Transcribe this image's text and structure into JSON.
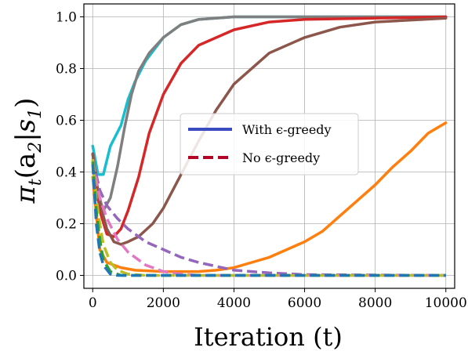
{
  "chart_data": {
    "type": "line",
    "title": "",
    "xlabel": "Iteration (t)",
    "ylabel_base": "π",
    "ylabel_sub": "t",
    "ylabel_args": "(a",
    "ylabel_args_sub": "2",
    "ylabel_given": "|s",
    "ylabel_given_sub": "1",
    "ylabel_close": ")",
    "xlim": [
      -250,
      10250
    ],
    "ylim": [
      -0.05,
      1.05
    ],
    "xticks": [
      0,
      2000,
      4000,
      6000,
      8000,
      10000
    ],
    "xtick_labels": [
      "0",
      "2000",
      "4000",
      "6000",
      "8000",
      "10000"
    ],
    "yticks": [
      0.0,
      0.2,
      0.4,
      0.6,
      0.8,
      1.0
    ],
    "ytick_labels": [
      "0.0",
      "0.2",
      "0.4",
      "0.6",
      "0.8",
      "1.0"
    ],
    "grid": true,
    "legend": {
      "placement": "center",
      "entries": [
        {
          "label": "With ϵ-greedy",
          "color": "#3b4cc0",
          "dash": "solid"
        },
        {
          "label": "No ϵ-greedy",
          "color": "#b40426",
          "dash": "dashed"
        }
      ]
    },
    "series": [
      {
        "color": "#17becf",
        "dash": "solid",
        "points": [
          [
            0,
            0.5
          ],
          [
            150,
            0.39
          ],
          [
            300,
            0.39
          ],
          [
            500,
            0.5
          ],
          [
            800,
            0.58
          ],
          [
            1000,
            0.68
          ],
          [
            1200,
            0.75
          ],
          [
            1500,
            0.83
          ],
          [
            2000,
            0.92
          ],
          [
            2500,
            0.97
          ],
          [
            3000,
            0.99
          ],
          [
            4000,
            1.0
          ],
          [
            6000,
            1.0
          ],
          [
            10000,
            1.0
          ]
        ]
      },
      {
        "color": "#7f7f7f",
        "dash": "solid",
        "points": [
          [
            0,
            0.47
          ],
          [
            150,
            0.32
          ],
          [
            300,
            0.25
          ],
          [
            500,
            0.3
          ],
          [
            700,
            0.42
          ],
          [
            900,
            0.57
          ],
          [
            1100,
            0.7
          ],
          [
            1300,
            0.79
          ],
          [
            1600,
            0.86
          ],
          [
            2000,
            0.92
          ],
          [
            2500,
            0.97
          ],
          [
            3000,
            0.99
          ],
          [
            4000,
            1.0
          ],
          [
            10000,
            1.0
          ]
        ]
      },
      {
        "color": "#d62728",
        "dash": "solid",
        "points": [
          [
            0,
            0.47
          ],
          [
            200,
            0.25
          ],
          [
            400,
            0.16
          ],
          [
            600,
            0.15
          ],
          [
            800,
            0.18
          ],
          [
            1000,
            0.25
          ],
          [
            1300,
            0.38
          ],
          [
            1600,
            0.55
          ],
          [
            2000,
            0.7
          ],
          [
            2500,
            0.82
          ],
          [
            3000,
            0.89
          ],
          [
            4000,
            0.95
          ],
          [
            5000,
            0.98
          ],
          [
            6000,
            0.99
          ],
          [
            10000,
            1.0
          ]
        ]
      },
      {
        "color": "#8c564b",
        "dash": "solid",
        "points": [
          [
            0,
            0.47
          ],
          [
            200,
            0.28
          ],
          [
            400,
            0.18
          ],
          [
            600,
            0.13
          ],
          [
            800,
            0.12
          ],
          [
            1000,
            0.13
          ],
          [
            1300,
            0.15
          ],
          [
            1700,
            0.2
          ],
          [
            2000,
            0.26
          ],
          [
            2500,
            0.39
          ],
          [
            3000,
            0.52
          ],
          [
            3500,
            0.64
          ],
          [
            4000,
            0.74
          ],
          [
            5000,
            0.86
          ],
          [
            6000,
            0.92
          ],
          [
            7000,
            0.96
          ],
          [
            8000,
            0.98
          ],
          [
            10000,
            0.995
          ]
        ]
      },
      {
        "color": "#ff7f0e",
        "dash": "solid",
        "points": [
          [
            0,
            0.38
          ],
          [
            200,
            0.1
          ],
          [
            400,
            0.05
          ],
          [
            800,
            0.03
          ],
          [
            1200,
            0.02
          ],
          [
            2000,
            0.015
          ],
          [
            3000,
            0.015
          ],
          [
            3500,
            0.02
          ],
          [
            4000,
            0.03
          ],
          [
            4500,
            0.05
          ],
          [
            5000,
            0.07
          ],
          [
            5500,
            0.1
          ],
          [
            6000,
            0.13
          ],
          [
            6500,
            0.17
          ],
          [
            7000,
            0.23
          ],
          [
            7500,
            0.29
          ],
          [
            8000,
            0.35
          ],
          [
            8500,
            0.42
          ],
          [
            9000,
            0.48
          ],
          [
            9500,
            0.55
          ],
          [
            10000,
            0.59
          ]
        ]
      },
      {
        "color": "#9467bd",
        "dash": "dashed",
        "points": [
          [
            0,
            0.45
          ],
          [
            200,
            0.33
          ],
          [
            400,
            0.27
          ],
          [
            700,
            0.22
          ],
          [
            1000,
            0.18
          ],
          [
            1500,
            0.13
          ],
          [
            2000,
            0.1
          ],
          [
            2500,
            0.07
          ],
          [
            3000,
            0.05
          ],
          [
            3500,
            0.035
          ],
          [
            4000,
            0.02
          ],
          [
            5000,
            0.01
          ],
          [
            6000,
            0.003
          ],
          [
            10000,
            0.0
          ]
        ]
      },
      {
        "color": "#e377c2",
        "dash": "dashed",
        "points": [
          [
            0,
            0.44
          ],
          [
            200,
            0.3
          ],
          [
            400,
            0.22
          ],
          [
            700,
            0.14
          ],
          [
            1000,
            0.09
          ],
          [
            1500,
            0.04
          ],
          [
            2000,
            0.015
          ],
          [
            2500,
            0.005
          ],
          [
            3000,
            0.0
          ],
          [
            10000,
            0.0
          ]
        ]
      },
      {
        "color": "#bcbd22",
        "dash": "dashed",
        "points": [
          [
            0,
            0.45
          ],
          [
            100,
            0.3
          ],
          [
            200,
            0.2
          ],
          [
            300,
            0.12
          ],
          [
            500,
            0.05
          ],
          [
            700,
            0.02
          ],
          [
            1000,
            0.005
          ],
          [
            1500,
            0.0
          ],
          [
            10000,
            0.0
          ]
        ]
      },
      {
        "color": "#2ca02c",
        "dash": "dashed",
        "points": [
          [
            0,
            0.44
          ],
          [
            100,
            0.25
          ],
          [
            200,
            0.14
          ],
          [
            300,
            0.06
          ],
          [
            500,
            0.015
          ],
          [
            800,
            0.0
          ],
          [
            10000,
            0.0
          ]
        ]
      },
      {
        "color": "#1f77b4",
        "dash": "dashed",
        "points": [
          [
            0,
            0.43
          ],
          [
            100,
            0.2
          ],
          [
            200,
            0.09
          ],
          [
            300,
            0.04
          ],
          [
            500,
            0.005
          ],
          [
            700,
            0.0
          ],
          [
            10000,
            0.0
          ]
        ]
      }
    ]
  }
}
